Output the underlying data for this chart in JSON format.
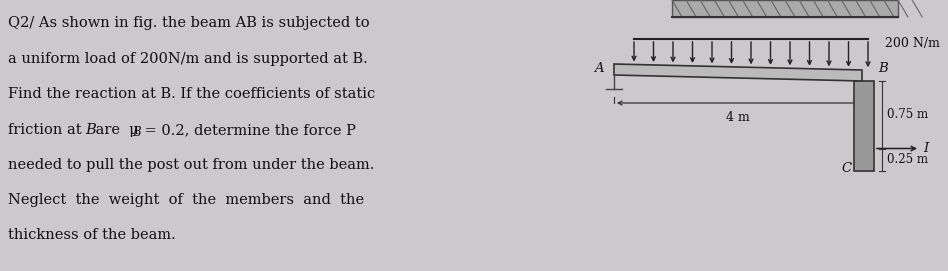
{
  "bg_color": "#ccc8cc",
  "text_color": "#111111",
  "question_lines": [
    "Q2/ As shown in fig. the beam AB is subjected to",
    "a uniform load of 200N/m and is supported at B.",
    "Find the reaction at B. If the coefficients of static",
    "friction at              = 0.2, determine the force P",
    "needed to pull the post out from under the beam.",
    "Neglect  the  weight  of  the  members  and  the",
    "thickness of the beam."
  ],
  "fontsize": 10.5,
  "diagram_label_200": "200 N/m",
  "diagram_label_4m": "4 m",
  "diagram_label_075": "0.75 m",
  "diagram_label_025": "0.25 m",
  "diagram_label_A": "A",
  "diagram_label_B": "B",
  "diagram_label_C": "C",
  "diagram_label_I": "I",
  "n_load_arrows": 13,
  "arrow_color": "#222222",
  "beam_color": "#bbbbbb",
  "post_color": "#999999",
  "wall_color": "#888888",
  "wall_hatch_color": "#666666"
}
